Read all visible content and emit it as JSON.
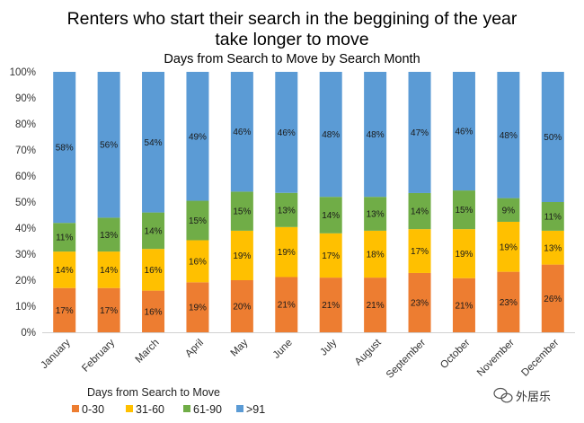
{
  "chart_data": {
    "type": "bar",
    "stacked": "percent",
    "title": "Renters who start their search in the beggining of the year take longer to move",
    "title_lines": [
      "Renters who start their search in the beggining of the year",
      "take longer to move"
    ],
    "subtitle": "Days from Search to Move by Search Month",
    "categories": [
      "January",
      "February",
      "March",
      "April",
      "May",
      "June",
      "July",
      "August",
      "September",
      "October",
      "November",
      "December"
    ],
    "series": [
      {
        "name": "0-30",
        "color": "#ED7D31",
        "values": [
          17,
          17,
          16,
          19,
          20,
          21,
          21,
          21,
          23,
          21,
          23,
          26
        ]
      },
      {
        "name": "31-60",
        "color": "#FFC000",
        "values": [
          14,
          14,
          16,
          16,
          19,
          19,
          17,
          18,
          17,
          19,
          19,
          13
        ]
      },
      {
        "name": "61-90",
        "color": "#70AD47",
        "values": [
          11,
          13,
          14,
          15,
          15,
          13,
          14,
          13,
          14,
          15,
          9,
          11
        ]
      },
      {
        "name": ">91",
        "color": "#5B9BD5",
        "values": [
          58,
          56,
          54,
          49,
          46,
          46,
          48,
          48,
          47,
          46,
          48,
          50
        ]
      }
    ],
    "yticks": [
      "0%",
      "10%",
      "20%",
      "30%",
      "40%",
      "50%",
      "60%",
      "70%",
      "80%",
      "90%",
      "100%"
    ],
    "ylim": [
      0,
      100
    ],
    "grid": false,
    "legend_title": "Days from Search to Move",
    "legend_position": "bottom"
  },
  "watermark": {
    "text": "外居乐",
    "icon": "wechat-icon"
  }
}
